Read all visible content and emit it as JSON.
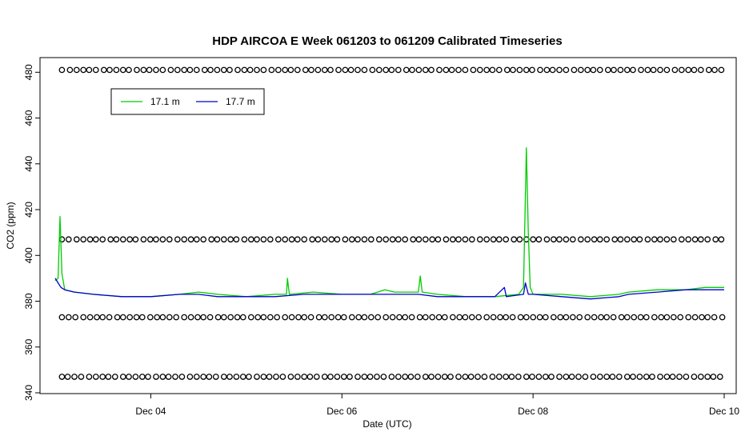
{
  "chart_data": {
    "type": "line",
    "title": "HDP AIRCOA E  Week 061203 to 061209  Calibrated Timeseries",
    "xlabel": "Date (UTC)",
    "ylabel": "CO2 (ppm)",
    "xlim": [
      3.0,
      10.0
    ],
    "ylim": [
      340,
      485
    ],
    "x_ticks": [
      {
        "value": 4,
        "label": "Dec 04"
      },
      {
        "value": 6,
        "label": "Dec 06"
      },
      {
        "value": 8,
        "label": "Dec 08"
      },
      {
        "value": 10,
        "label": "Dec 10"
      }
    ],
    "y_ticks": [
      340,
      360,
      380,
      400,
      420,
      440,
      460,
      480
    ],
    "grid": false,
    "legend": {
      "placement": "top-left",
      "entries": [
        {
          "label": "17.1 m",
          "color": "#00cc00"
        },
        {
          "label": "17.7 m",
          "color": "#0000cc"
        }
      ]
    },
    "series": [
      {
        "name": "17.1 m",
        "color": "#00cc00",
        "points": [
          [
            3.0,
            389
          ],
          [
            3.03,
            390
          ],
          [
            3.05,
            417
          ],
          [
            3.07,
            392
          ],
          [
            3.1,
            385
          ],
          [
            3.2,
            384
          ],
          [
            3.4,
            383
          ],
          [
            3.7,
            382
          ],
          [
            4.0,
            382
          ],
          [
            4.3,
            383
          ],
          [
            4.5,
            384
          ],
          [
            4.7,
            383
          ],
          [
            5.0,
            382
          ],
          [
            5.3,
            383
          ],
          [
            5.42,
            383
          ],
          [
            5.43,
            390
          ],
          [
            5.45,
            383
          ],
          [
            5.7,
            384
          ],
          [
            6.0,
            383
          ],
          [
            6.3,
            383
          ],
          [
            6.45,
            385
          ],
          [
            6.55,
            384
          ],
          [
            6.8,
            384
          ],
          [
            6.82,
            391
          ],
          [
            6.84,
            384
          ],
          [
            7.0,
            383
          ],
          [
            7.3,
            382
          ],
          [
            7.6,
            382
          ],
          [
            7.85,
            383
          ],
          [
            7.9,
            386
          ],
          [
            7.93,
            447
          ],
          [
            7.95,
            410
          ],
          [
            7.97,
            386
          ],
          [
            8.0,
            383
          ],
          [
            8.3,
            383
          ],
          [
            8.6,
            382
          ],
          [
            8.9,
            383
          ],
          [
            9.0,
            384
          ],
          [
            9.3,
            385
          ],
          [
            9.6,
            385
          ],
          [
            9.8,
            386
          ],
          [
            10.0,
            386
          ]
        ]
      },
      {
        "name": "17.7 m",
        "color": "#0000cc",
        "points": [
          [
            3.0,
            390
          ],
          [
            3.03,
            388
          ],
          [
            3.06,
            386
          ],
          [
            3.1,
            385
          ],
          [
            3.2,
            384
          ],
          [
            3.4,
            383
          ],
          [
            3.7,
            382
          ],
          [
            4.0,
            382
          ],
          [
            4.3,
            383
          ],
          [
            4.5,
            383
          ],
          [
            4.7,
            382
          ],
          [
            5.0,
            382
          ],
          [
            5.3,
            382
          ],
          [
            5.6,
            383
          ],
          [
            6.0,
            383
          ],
          [
            6.3,
            383
          ],
          [
            6.5,
            383
          ],
          [
            6.8,
            383
          ],
          [
            7.0,
            382
          ],
          [
            7.3,
            382
          ],
          [
            7.6,
            382
          ],
          [
            7.7,
            386
          ],
          [
            7.72,
            382
          ],
          [
            7.9,
            383
          ],
          [
            7.92,
            388
          ],
          [
            7.95,
            383
          ],
          [
            8.0,
            383
          ],
          [
            8.3,
            382
          ],
          [
            8.6,
            381
          ],
          [
            8.9,
            382
          ],
          [
            9.0,
            383
          ],
          [
            9.3,
            384
          ],
          [
            9.6,
            385
          ],
          [
            9.8,
            385
          ],
          [
            10.0,
            385
          ]
        ]
      },
      {
        "name": "",
        "style": "markers",
        "marker": "open-circle",
        "y_levels": [
          481,
          407,
          373,
          347
        ],
        "x_range": [
          3.07,
          10.0
        ]
      }
    ]
  }
}
